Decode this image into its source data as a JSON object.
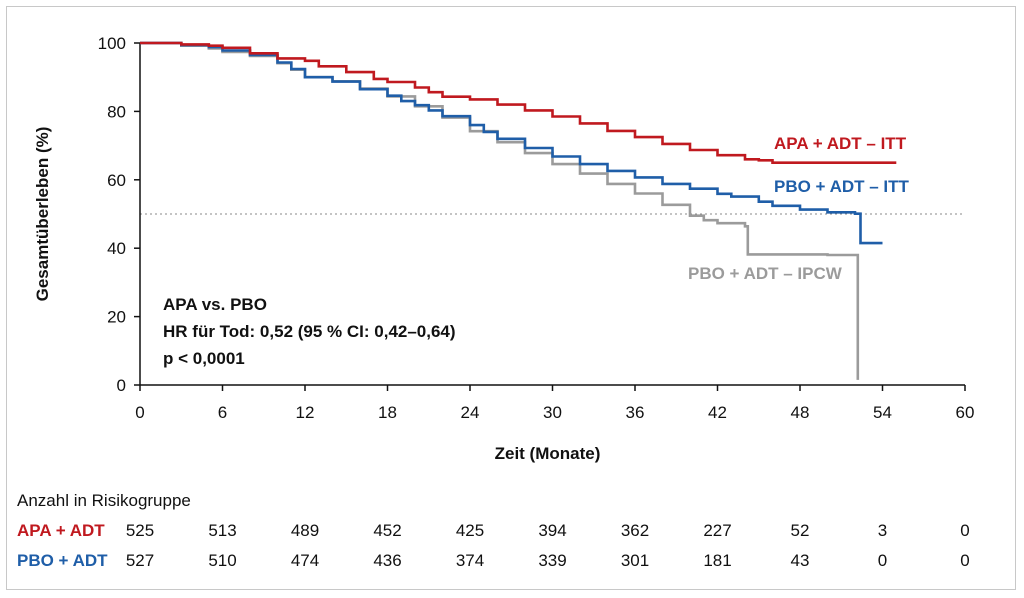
{
  "chart_data": {
    "type": "line",
    "chart_subtype": "kaplan-meier step",
    "xlabel": "Zeit (Monate)",
    "ylabel": "Gesamtüberleben (%)",
    "xlim": [
      0,
      60
    ],
    "ylim": [
      0,
      100
    ],
    "x_ticks": [
      0,
      6,
      12,
      18,
      24,
      30,
      36,
      42,
      48,
      54,
      60
    ],
    "y_ticks": [
      0,
      20,
      40,
      60,
      80,
      100
    ],
    "reference_line": {
      "y": 50,
      "style": "dotted"
    },
    "annotation": [
      "APA vs. PBO",
      "HR für Tod: 0,52 (95 % CI: 0,42–0,64)",
      "p < 0,0001"
    ],
    "series": [
      {
        "name": "APA + ADT – ITT",
        "color": "#c0191f",
        "points": [
          [
            0,
            100
          ],
          [
            3,
            99.6
          ],
          [
            5,
            99.2
          ],
          [
            6,
            98.6
          ],
          [
            8,
            97
          ],
          [
            10,
            95.5
          ],
          [
            12,
            94.8
          ],
          [
            13,
            93.2
          ],
          [
            15,
            91.5
          ],
          [
            17,
            89.5
          ],
          [
            18,
            88.6
          ],
          [
            20,
            87
          ],
          [
            21,
            85.6
          ],
          [
            22,
            84.3
          ],
          [
            24,
            83.5
          ],
          [
            26,
            82
          ],
          [
            28,
            80.3
          ],
          [
            30,
            78.5
          ],
          [
            32,
            76.5
          ],
          [
            34,
            74.3
          ],
          [
            36,
            72.5
          ],
          [
            38,
            70.5
          ],
          [
            40,
            68.7
          ],
          [
            42,
            67.2
          ],
          [
            44,
            66
          ],
          [
            45,
            65.7
          ],
          [
            46,
            65
          ],
          [
            48,
            65
          ],
          [
            50,
            65
          ],
          [
            53,
            65
          ],
          [
            55,
            65
          ]
        ]
      },
      {
        "name": "PBO + ADT – ITT",
        "color": "#1f5ea8",
        "points": [
          [
            0,
            100
          ],
          [
            3,
            99.4
          ],
          [
            5,
            98.8
          ],
          [
            6,
            97.8
          ],
          [
            8,
            96.5
          ],
          [
            10,
            94.3
          ],
          [
            11,
            92.4
          ],
          [
            12,
            90
          ],
          [
            14,
            88.7
          ],
          [
            16,
            86.5
          ],
          [
            18,
            84.6
          ],
          [
            19,
            83
          ],
          [
            20,
            81.8
          ],
          [
            21,
            80.3
          ],
          [
            22,
            78.6
          ],
          [
            24,
            76
          ],
          [
            25,
            74
          ],
          [
            26,
            72
          ],
          [
            28,
            69.3
          ],
          [
            30,
            66.8
          ],
          [
            32,
            64.6
          ],
          [
            34,
            62.6
          ],
          [
            36,
            60.7
          ],
          [
            38,
            58.8
          ],
          [
            40,
            57.4
          ],
          [
            42,
            55.9
          ],
          [
            43,
            55.1
          ],
          [
            45,
            53.6
          ],
          [
            46,
            52.4
          ],
          [
            48,
            51.3
          ],
          [
            50,
            50.5
          ],
          [
            52,
            50.1
          ],
          [
            52.4,
            50.1
          ],
          [
            52.4,
            41.5
          ],
          [
            53,
            41.5
          ],
          [
            54,
            41.5
          ]
        ]
      },
      {
        "name": "PBO + ADT – IPCW",
        "color": "#9b9b9b",
        "points": [
          [
            0,
            100
          ],
          [
            3,
            99.2
          ],
          [
            5,
            98.4
          ],
          [
            6,
            97.4
          ],
          [
            8,
            96.2
          ],
          [
            10,
            94.1
          ],
          [
            11,
            92.2
          ],
          [
            12,
            90
          ],
          [
            14,
            88.8
          ],
          [
            16,
            86.7
          ],
          [
            18,
            84.4
          ],
          [
            20,
            81.5
          ],
          [
            22,
            78.2
          ],
          [
            24,
            74.2
          ],
          [
            26,
            71
          ],
          [
            28,
            67.8
          ],
          [
            30,
            64.6
          ],
          [
            32,
            61.8
          ],
          [
            34,
            58.8
          ],
          [
            36,
            56
          ],
          [
            38,
            52.7
          ],
          [
            40,
            49.5
          ],
          [
            41,
            48.2
          ],
          [
            42,
            47.3
          ],
          [
            44,
            46.4
          ],
          [
            44.2,
            46.4
          ],
          [
            44.2,
            38.2
          ],
          [
            46,
            38.2
          ],
          [
            48,
            38.2
          ],
          [
            50,
            38
          ],
          [
            52.2,
            38
          ],
          [
            52.2,
            1.5
          ]
        ]
      }
    ],
    "curve_labels": [
      "APA + ADT – ITT",
      "PBO + ADT – ITT",
      "PBO + ADT – IPCW"
    ]
  },
  "risk_table": {
    "title": "Anzahl in Risikogruppe",
    "rows": [
      {
        "label": "APA + ADT",
        "color": "#c0191f",
        "values": [
          525,
          513,
          489,
          452,
          425,
          394,
          362,
          227,
          52,
          3,
          0
        ]
      },
      {
        "label": "PBO + ADT",
        "color": "#1f5ea8",
        "values": [
          527,
          510,
          474,
          436,
          374,
          339,
          301,
          181,
          43,
          0,
          0
        ]
      }
    ]
  }
}
